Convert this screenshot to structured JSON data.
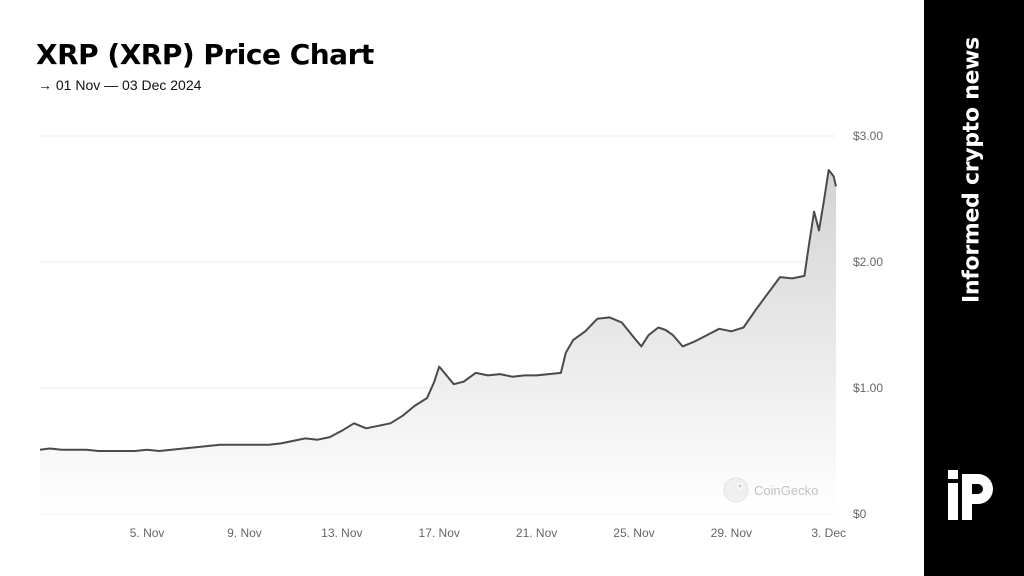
{
  "header": {
    "title": "XRP (XRP) Price Chart",
    "subtitle": "→ 01 Nov — 03 Dec 2024"
  },
  "side_panel": {
    "tagline": "Informed crypto news",
    "logo_icon": "publication-logo-icon",
    "background": "#000000"
  },
  "watermark": {
    "text": "CoinGecko",
    "icon": "gecko-icon"
  },
  "colors": {
    "line": "#4a4a4a",
    "area_top": "#d3d3d3",
    "area_bottom": "#ffffff",
    "grid": "#ececec",
    "tick_text": "#666666"
  },
  "chart_data": {
    "type": "area",
    "title": "XRP (XRP) Price Chart",
    "xlabel": "",
    "ylabel": "",
    "xlim": [
      0.6,
      33.3
    ],
    "ylim": [
      0,
      3
    ],
    "grid": true,
    "y_ticks": [
      {
        "value": 0,
        "label": "$0"
      },
      {
        "value": 1,
        "label": "$1.00"
      },
      {
        "value": 2,
        "label": "$2.00"
      },
      {
        "value": 3,
        "label": "$3.00"
      }
    ],
    "x_ticks": [
      {
        "value": 5,
        "label": "5. Nov"
      },
      {
        "value": 9,
        "label": "9. Nov"
      },
      {
        "value": 13,
        "label": "13. Nov"
      },
      {
        "value": 17,
        "label": "17. Nov"
      },
      {
        "value": 21,
        "label": "21. Nov"
      },
      {
        "value": 25,
        "label": "25. Nov"
      },
      {
        "value": 29,
        "label": "29. Nov"
      },
      {
        "value": 33,
        "label": "3. Dec"
      }
    ],
    "series": [
      {
        "points": [
          [
            0.6,
            0.51
          ],
          [
            1.0,
            0.52
          ],
          [
            1.5,
            0.51
          ],
          [
            2.0,
            0.51
          ],
          [
            2.5,
            0.51
          ],
          [
            3.0,
            0.5
          ],
          [
            3.5,
            0.5
          ],
          [
            4.0,
            0.5
          ],
          [
            4.5,
            0.5
          ],
          [
            5.0,
            0.51
          ],
          [
            5.5,
            0.5
          ],
          [
            6.0,
            0.51
          ],
          [
            6.5,
            0.52
          ],
          [
            7.0,
            0.53
          ],
          [
            7.5,
            0.54
          ],
          [
            8.0,
            0.55
          ],
          [
            8.5,
            0.55
          ],
          [
            9.0,
            0.55
          ],
          [
            9.5,
            0.55
          ],
          [
            10.0,
            0.55
          ],
          [
            10.5,
            0.56
          ],
          [
            11.0,
            0.58
          ],
          [
            11.5,
            0.6
          ],
          [
            12.0,
            0.59
          ],
          [
            12.5,
            0.61
          ],
          [
            13.0,
            0.66
          ],
          [
            13.5,
            0.72
          ],
          [
            14.0,
            0.68
          ],
          [
            14.5,
            0.7
          ],
          [
            15.0,
            0.72
          ],
          [
            15.5,
            0.78
          ],
          [
            16.0,
            0.86
          ],
          [
            16.5,
            0.92
          ],
          [
            16.8,
            1.05
          ],
          [
            17.0,
            1.17
          ],
          [
            17.3,
            1.1
          ],
          [
            17.6,
            1.03
          ],
          [
            18.0,
            1.05
          ],
          [
            18.5,
            1.12
          ],
          [
            19.0,
            1.1
          ],
          [
            19.5,
            1.11
          ],
          [
            20.0,
            1.09
          ],
          [
            20.5,
            1.1
          ],
          [
            21.0,
            1.1
          ],
          [
            21.5,
            1.11
          ],
          [
            22.0,
            1.12
          ],
          [
            22.2,
            1.28
          ],
          [
            22.5,
            1.38
          ],
          [
            23.0,
            1.45
          ],
          [
            23.5,
            1.55
          ],
          [
            24.0,
            1.56
          ],
          [
            24.5,
            1.52
          ],
          [
            25.0,
            1.4
          ],
          [
            25.3,
            1.33
          ],
          [
            25.6,
            1.42
          ],
          [
            26.0,
            1.48
          ],
          [
            26.3,
            1.46
          ],
          [
            26.6,
            1.42
          ],
          [
            27.0,
            1.33
          ],
          [
            27.5,
            1.37
          ],
          [
            28.0,
            1.42
          ],
          [
            28.5,
            1.47
          ],
          [
            29.0,
            1.45
          ],
          [
            29.5,
            1.48
          ],
          [
            30.0,
            1.62
          ],
          [
            30.5,
            1.75
          ],
          [
            31.0,
            1.88
          ],
          [
            31.5,
            1.87
          ],
          [
            32.0,
            1.89
          ],
          [
            32.2,
            2.15
          ],
          [
            32.4,
            2.4
          ],
          [
            32.6,
            2.25
          ],
          [
            32.8,
            2.48
          ],
          [
            33.0,
            2.73
          ],
          [
            33.2,
            2.68
          ],
          [
            33.3,
            2.6
          ]
        ]
      }
    ]
  }
}
